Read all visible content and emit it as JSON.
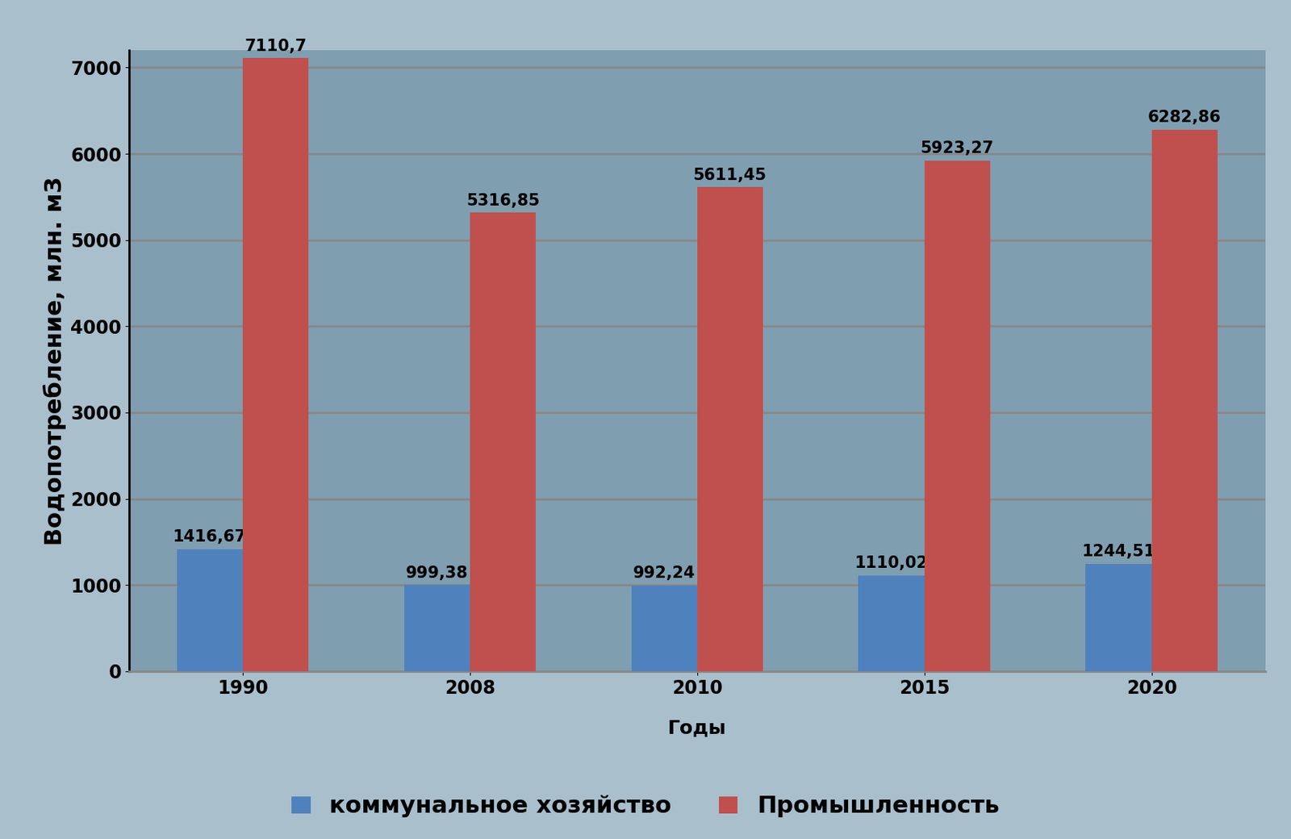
{
  "chart_data": {
    "type": "bar",
    "x_label": "Годы",
    "y_label": "Водопотребление, млн. м3",
    "categories": [
      "1990",
      "2008",
      "2010",
      "2015",
      "2020"
    ],
    "series": [
      {
        "name": "коммунальное хозяйство",
        "color": "#4f81bd",
        "values": [
          1416.67,
          999.38,
          992.24,
          1110.02,
          1244.51
        ],
        "value_labels": [
          "1416,67",
          "999,38",
          "992,24",
          "1110,02",
          "1244,51"
        ]
      },
      {
        "name": "Промышленность",
        "color": "#c0504d",
        "values": [
          7110.7,
          5316.85,
          5611.45,
          5923.27,
          6282.86
        ],
        "value_labels": [
          "7110,7",
          "5316,85",
          "5611,45",
          "5923,27",
          "6282,86"
        ]
      }
    ],
    "ylim": [
      0,
      7200
    ],
    "yticks": [
      0,
      1000,
      2000,
      3000,
      4000,
      5000,
      6000,
      7000
    ],
    "grid": true,
    "legend": "lower center",
    "data_labels": true
  }
}
